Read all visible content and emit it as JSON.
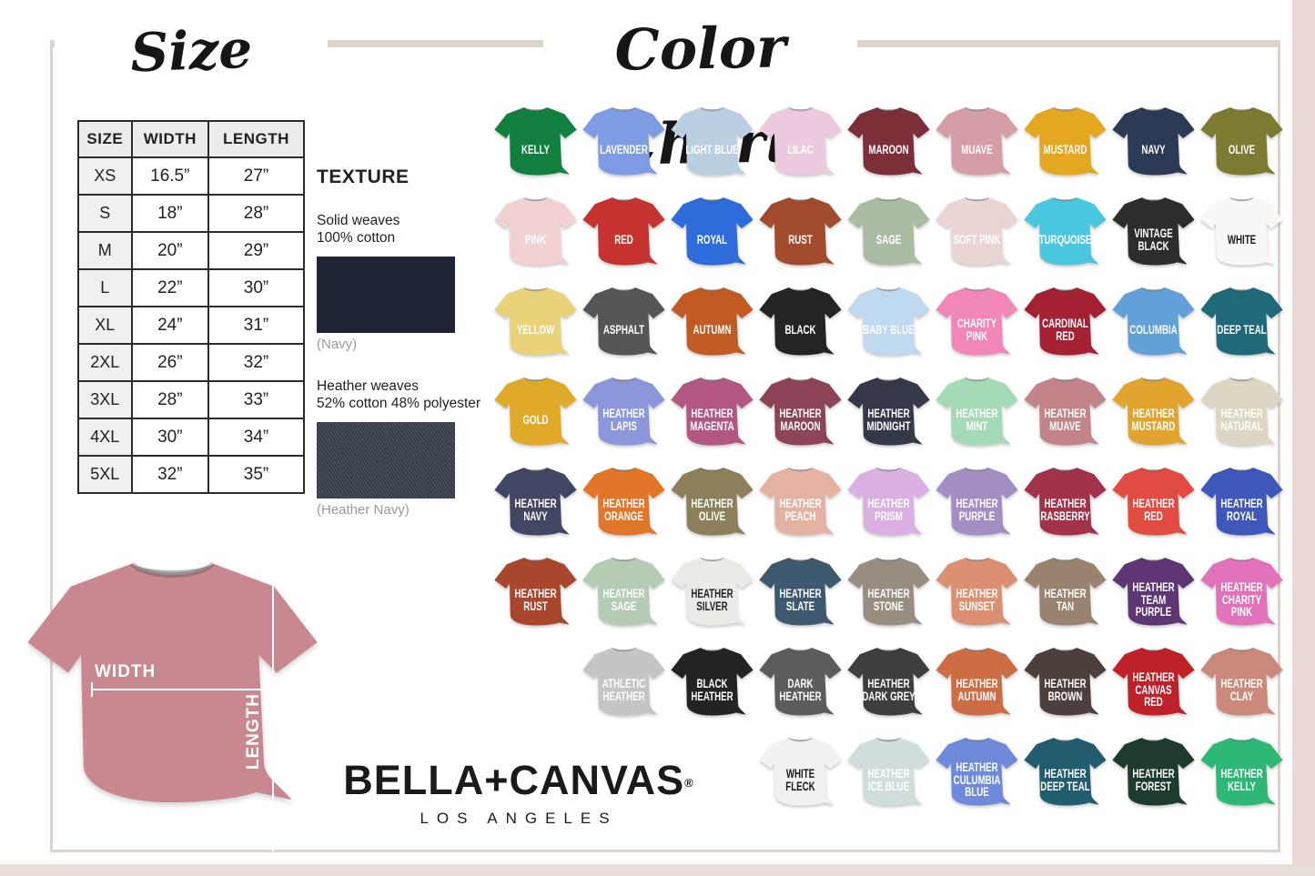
{
  "page": {
    "background": "#ffffff",
    "frame_color": "#dcd3ca",
    "edge_color": "#e9d8d4"
  },
  "size_chart": {
    "title": "Size Chart",
    "headers": [
      "SIZE",
      "WIDTH",
      "LENGTH"
    ],
    "rows": [
      [
        "XS",
        "16.5”",
        "27”"
      ],
      [
        "S",
        "18”",
        "28”"
      ],
      [
        "M",
        "20”",
        "29”"
      ],
      [
        "L",
        "22”",
        "30”"
      ],
      [
        "XL",
        "24”",
        "31”"
      ],
      [
        "2XL",
        "26”",
        "32”"
      ],
      [
        "3XL",
        "28”",
        "33”"
      ],
      [
        "4XL",
        "30”",
        "34”"
      ],
      [
        "5XL",
        "32”",
        "35”"
      ]
    ]
  },
  "texture": {
    "title": "TEXTURE",
    "solid_line1": "Solid weaves",
    "solid_line2": "100% cotton",
    "solid_caption": "(Navy)",
    "solid_color": "#1f2534",
    "heather_line1": "Heather weaves",
    "heather_line2": "52% cotton 48% polyester",
    "heather_caption": "(Heather Navy)",
    "heather_color": "#3c4451"
  },
  "measurement": {
    "width_label": "WIDTH",
    "length_label": "LENGTH",
    "shirt_color": "#c9888f"
  },
  "brand": {
    "name": "BELLA+CANVAS",
    "registered": "®",
    "city": "LOS ANGELES"
  },
  "color_chart": {
    "title": "Color Chart",
    "rows": [
      [
        {
          "name": "KELLY",
          "color": "#11803f"
        },
        {
          "name": "LAVENDER",
          "color": "#7d9ce4"
        },
        {
          "name": "LIGHT BLUE",
          "color": "#bad0e2"
        },
        {
          "name": "LILAC",
          "color": "#ebcade"
        },
        {
          "name": "MAROON",
          "color": "#7d2f39"
        },
        {
          "name": "MUAVE",
          "color": "#d59da6"
        },
        {
          "name": "MUSTARD",
          "color": "#e3a81f"
        },
        {
          "name": "NAVY",
          "color": "#2b3a55"
        },
        {
          "name": "OLIVE",
          "color": "#7b7b31"
        }
      ],
      [
        {
          "name": "PINK",
          "color": "#f1d1d2"
        },
        {
          "name": "RED",
          "color": "#c63331"
        },
        {
          "name": "ROYAL",
          "color": "#2e6cdb"
        },
        {
          "name": "RUST",
          "color": "#a34b2d"
        },
        {
          "name": "SAGE",
          "color": "#aabda2"
        },
        {
          "name": "SOFT PINK",
          "color": "#ebd5d2"
        },
        {
          "name": "TURQUOISE",
          "color": "#49c7de"
        },
        {
          "name": "VINTAGE BLACK",
          "color": "#2e2c2d"
        },
        {
          "name": "WHITE",
          "color": "#f8f8f8",
          "text_color": "#1a1a1a"
        }
      ],
      [
        {
          "name": "YELLOW",
          "color": "#e9d277"
        },
        {
          "name": "ASPHALT",
          "color": "#565659"
        },
        {
          "name": "AUTUMN",
          "color": "#c25a23"
        },
        {
          "name": "BLACK",
          "color": "#242425"
        },
        {
          "name": "BABY BLUE",
          "color": "#bfd9f1"
        },
        {
          "name": "CHARITY PINK",
          "color": "#f187b7"
        },
        {
          "name": "CARDINAL RED",
          "color": "#a42134"
        },
        {
          "name": "COLUMBIA",
          "color": "#61a0d8"
        },
        {
          "name": "DEEP TEAL",
          "color": "#1f697a"
        }
      ],
      [
        {
          "name": "GOLD",
          "color": "#e0a928"
        },
        {
          "name": "HEATHER LAPIS",
          "color": "#8c96db"
        },
        {
          "name": "HEATHER MAGENTA",
          "color": "#b15782"
        },
        {
          "name": "HEATHER MAROON",
          "color": "#8c4456"
        },
        {
          "name": "HEATHER MIDNIGHT",
          "color": "#353849"
        },
        {
          "name": "HEATHER MINT",
          "color": "#a5dab7"
        },
        {
          "name": "HEATHER MUAVE",
          "color": "#c38489"
        },
        {
          "name": "HEATHER MUSTARD",
          "color": "#e1a52f"
        },
        {
          "name": "HEATHER NATURAL",
          "color": "#ddd6c2"
        }
      ],
      [
        {
          "name": "HEATHER NAVY",
          "color": "#414663"
        },
        {
          "name": "HEATHER ORANGE",
          "color": "#e27628"
        },
        {
          "name": "HEATHER OLIVE",
          "color": "#8c7f5a"
        },
        {
          "name": "HEATHER PEACH",
          "color": "#e3b2a2"
        },
        {
          "name": "HEATHER PRISM",
          "color": "#daafe2"
        },
        {
          "name": "HEATHER PURPLE",
          "color": "#a28ec2"
        },
        {
          "name": "HEATHER RASBERRY",
          "color": "#a2314a"
        },
        {
          "name": "HEATHER RED",
          "color": "#e24b42"
        },
        {
          "name": "HEATHER ROYAL",
          "color": "#3f57ba"
        }
      ],
      [
        {
          "name": "HEATHER RUST",
          "color": "#aa462c"
        },
        {
          "name": "HEATHER SAGE",
          "color": "#b4cbb4"
        },
        {
          "name": "HEATHER SILVER",
          "color": "#eaeae7",
          "text_color": "#222222"
        },
        {
          "name": "HEATHER SLATE",
          "color": "#3e586d"
        },
        {
          "name": "HEATHER STONE",
          "color": "#978d80"
        },
        {
          "name": "HEATHER SUNSET",
          "color": "#db9072"
        },
        {
          "name": "HEATHER TAN",
          "color": "#99836e"
        },
        {
          "name": "HEATHER TEAM PURPLE",
          "color": "#5e3674"
        },
        {
          "name": "HEATHER CHARITY PINK",
          "color": "#e273ba"
        }
      ],
      [
        {
          "name": "ATHLETIC HEATHER",
          "color": "#c5c5c5"
        },
        {
          "name": "BLACK HEATHER",
          "color": "#232324"
        },
        {
          "name": "DARK HEATHER",
          "color": "#5a5c5e"
        },
        {
          "name": "HEATHER DARK GREY",
          "color": "#3e3e40"
        },
        {
          "name": "HEATHER AUTUMN",
          "color": "#cd6d46"
        },
        {
          "name": "HEATHER BROWN",
          "color": "#4d3f3b"
        },
        {
          "name": "HEATHER CANVAS RED",
          "color": "#be2128"
        },
        {
          "name": "HEATHER CLAY",
          "color": "#cb897b"
        }
      ],
      [
        {
          "name": "WHITE FLECK",
          "color": "#f1f1ef",
          "text_color": "#1a1a1a"
        },
        {
          "name": "HEATHER ICE BLUE",
          "color": "#cfdedc"
        },
        {
          "name": "HEATHER CULUMBIA BLUE",
          "color": "#6f8ada"
        },
        {
          "name": "HEATHER DEEP TEAL",
          "color": "#215c6f"
        },
        {
          "name": "HEATHER FOREST",
          "color": "#1e3c2e"
        },
        {
          "name": "HEATHER KELLY",
          "color": "#2db875"
        }
      ]
    ]
  }
}
